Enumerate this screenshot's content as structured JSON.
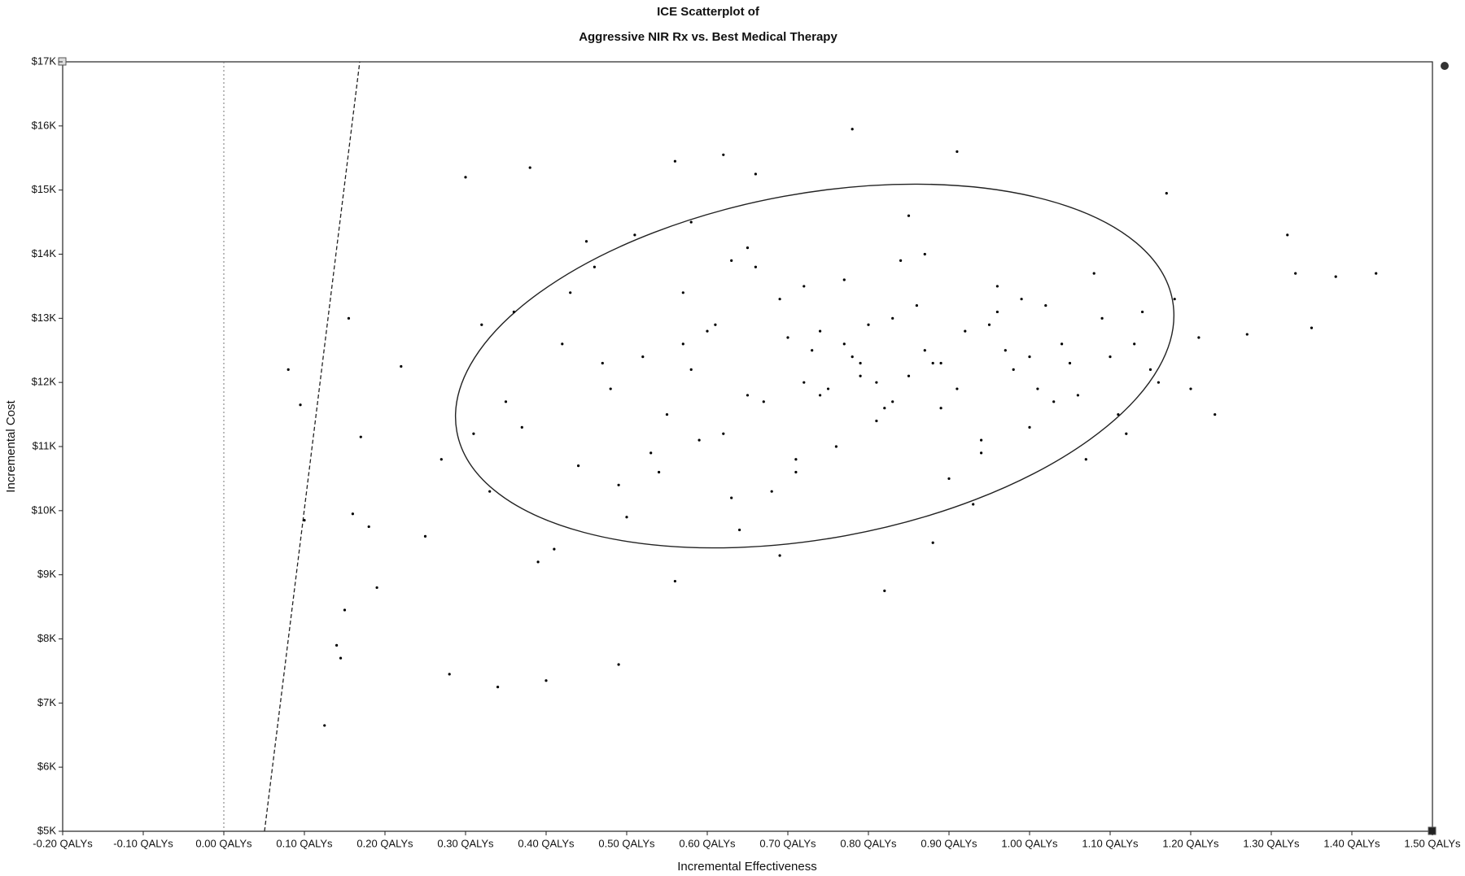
{
  "chart_data": {
    "type": "scatter",
    "title": "ICE Scatterplot of",
    "subtitle": "Aggressive NIR Rx vs. Best Medical Therapy",
    "x_label": "Incremental Effectiveness",
    "y_label": "Incremental Cost",
    "color": "#000000",
    "xlim": [
      -0.2,
      1.5
    ],
    "ylim": [
      5000,
      17000
    ],
    "xticks": [
      {
        "value": -0.2,
        "label": "-0.20 QALYs"
      },
      {
        "value": -0.1,
        "label": "-0.10 QALYs"
      },
      {
        "value": 0,
        "label": "0.00 QALYs"
      },
      {
        "value": 0.1,
        "label": "0.10 QALYs"
      },
      {
        "value": 0.2,
        "label": "0.20 QALYs"
      },
      {
        "value": 0.3,
        "label": "0.30 QALYs"
      },
      {
        "value": 0.4,
        "label": "0.40 QALYs"
      },
      {
        "value": 0.5,
        "label": "0.50 QALYs"
      },
      {
        "value": 0.6,
        "label": "0.60 QALYs"
      },
      {
        "value": 0.7,
        "label": "0.70 QALYs"
      },
      {
        "value": 0.8,
        "label": "0.80 QALYs"
      },
      {
        "value": 0.9,
        "label": "0.90 QALYs"
      },
      {
        "value": 1.0,
        "label": "1.00 QALYs"
      },
      {
        "value": 1.1,
        "label": "1.10 QALYs"
      },
      {
        "value": 1.2,
        "label": "1.20 QALYs"
      },
      {
        "value": 1.3,
        "label": "1.30 QALYs"
      },
      {
        "value": 1.4,
        "label": "1.40 QALYs"
      },
      {
        "value": 1.5,
        "label": "1.50 QALYs"
      }
    ],
    "yticks": [
      {
        "value": 5000,
        "label": "$5K"
      },
      {
        "value": 6000,
        "label": "$6K"
      },
      {
        "value": 7000,
        "label": "$7K"
      },
      {
        "value": 8000,
        "label": "$8K"
      },
      {
        "value": 9000,
        "label": "$9K"
      },
      {
        "value": 10000,
        "label": "$10K"
      },
      {
        "value": 11000,
        "label": "$11K"
      },
      {
        "value": 12000,
        "label": "$12K"
      },
      {
        "value": 13000,
        "label": "$13K"
      },
      {
        "value": 14000,
        "label": "$14K"
      },
      {
        "value": 15000,
        "label": "$15K"
      },
      {
        "value": 16000,
        "label": "$16K"
      },
      {
        "value": 17000,
        "label": "$17K"
      }
    ],
    "x": [
      0.08,
      0.095,
      0.1,
      0.125,
      0.14,
      0.145,
      0.15,
      0.155,
      0.16,
      0.17,
      0.18,
      0.19,
      0.28,
      0.34,
      0.4,
      0.49,
      0.78,
      0.91,
      0.56,
      0.62,
      1.43,
      1.38,
      1.33,
      1.35,
      1.32,
      1.27,
      1.2,
      1.17,
      0.88,
      0.82,
      0.38,
      0.3,
      0.66,
      0.22,
      0.25,
      0.27,
      0.31,
      0.33,
      0.36,
      0.39,
      0.42,
      0.44,
      0.46,
      0.48,
      0.5,
      0.52,
      0.54,
      0.57,
      0.59,
      0.61,
      0.63,
      0.65,
      0.67,
      0.69,
      0.71,
      0.73,
      0.75,
      0.77,
      0.79,
      0.81,
      0.83,
      0.85,
      0.87,
      0.89,
      0.92,
      0.94,
      0.96,
      0.98,
      1.0,
      1.02,
      1.04,
      1.06,
      1.08,
      1.1,
      1.12,
      1.14,
      1.16,
      1.18,
      1.21,
      1.23,
      0.35,
      0.41,
      0.47,
      0.53,
      0.58,
      0.64,
      0.7,
      0.76,
      0.84,
      0.9,
      0.95,
      1.01,
      1.07,
      1.13,
      0.45,
      0.55,
      0.6,
      0.68,
      0.72,
      0.74,
      0.78,
      0.8,
      0.82,
      0.86,
      0.88,
      0.93,
      0.97,
      1.03,
      1.09,
      1.15,
      0.32,
      0.37,
      0.43,
      0.51,
      0.56,
      0.62,
      0.66,
      0.71,
      0.79,
      0.85,
      0.91,
      0.99,
      1.05,
      1.11,
      0.49,
      0.57,
      0.63,
      0.69,
      0.74,
      0.81,
      0.87,
      0.94,
      1.0,
      0.58,
      0.65,
      0.72,
      0.77,
      0.83,
      0.89,
      0.96
    ],
    "values": [
      12200,
      11650,
      9850,
      6650,
      7900,
      7700,
      8450,
      13000,
      9950,
      11150,
      9750,
      8800,
      7450,
      7250,
      7350,
      7600,
      15950,
      15600,
      15450,
      15550,
      13700,
      13650,
      13700,
      12850,
      14300,
      12750,
      11900,
      14950,
      9500,
      8750,
      15350,
      15200,
      15250,
      12250,
      9600,
      10800,
      11200,
      10300,
      13100,
      9200,
      12600,
      10700,
      13800,
      11900,
      9900,
      12400,
      10600,
      13400,
      11100,
      12900,
      10200,
      14100,
      11700,
      13300,
      10800,
      12500,
      11900,
      13600,
      12300,
      11400,
      13000,
      12100,
      14000,
      11600,
      12800,
      10900,
      13500,
      12200,
      11300,
      13200,
      12600,
      11800,
      13700,
      12400,
      11200,
      13100,
      12000,
      13300,
      12700,
      11500,
      11700,
      9400,
      12300,
      10900,
      14500,
      9700,
      12700,
      11000,
      13900,
      10500,
      12900,
      11900,
      10800,
      12600,
      14200,
      11500,
      12800,
      10300,
      13500,
      11800,
      12400,
      12900,
      11600,
      13200,
      12300,
      10100,
      12500,
      11700,
      13000,
      12200,
      12900,
      11300,
      13400,
      14300,
      8900,
      11200,
      13800,
      10600,
      12100,
      14600,
      11900,
      13300,
      12300,
      11500,
      10400,
      12600,
      13900,
      9300,
      12800,
      12000,
      12500,
      11100,
      12400,
      12200,
      11800,
      12000,
      12600,
      11700,
      12300,
      13100
    ]
  }
}
